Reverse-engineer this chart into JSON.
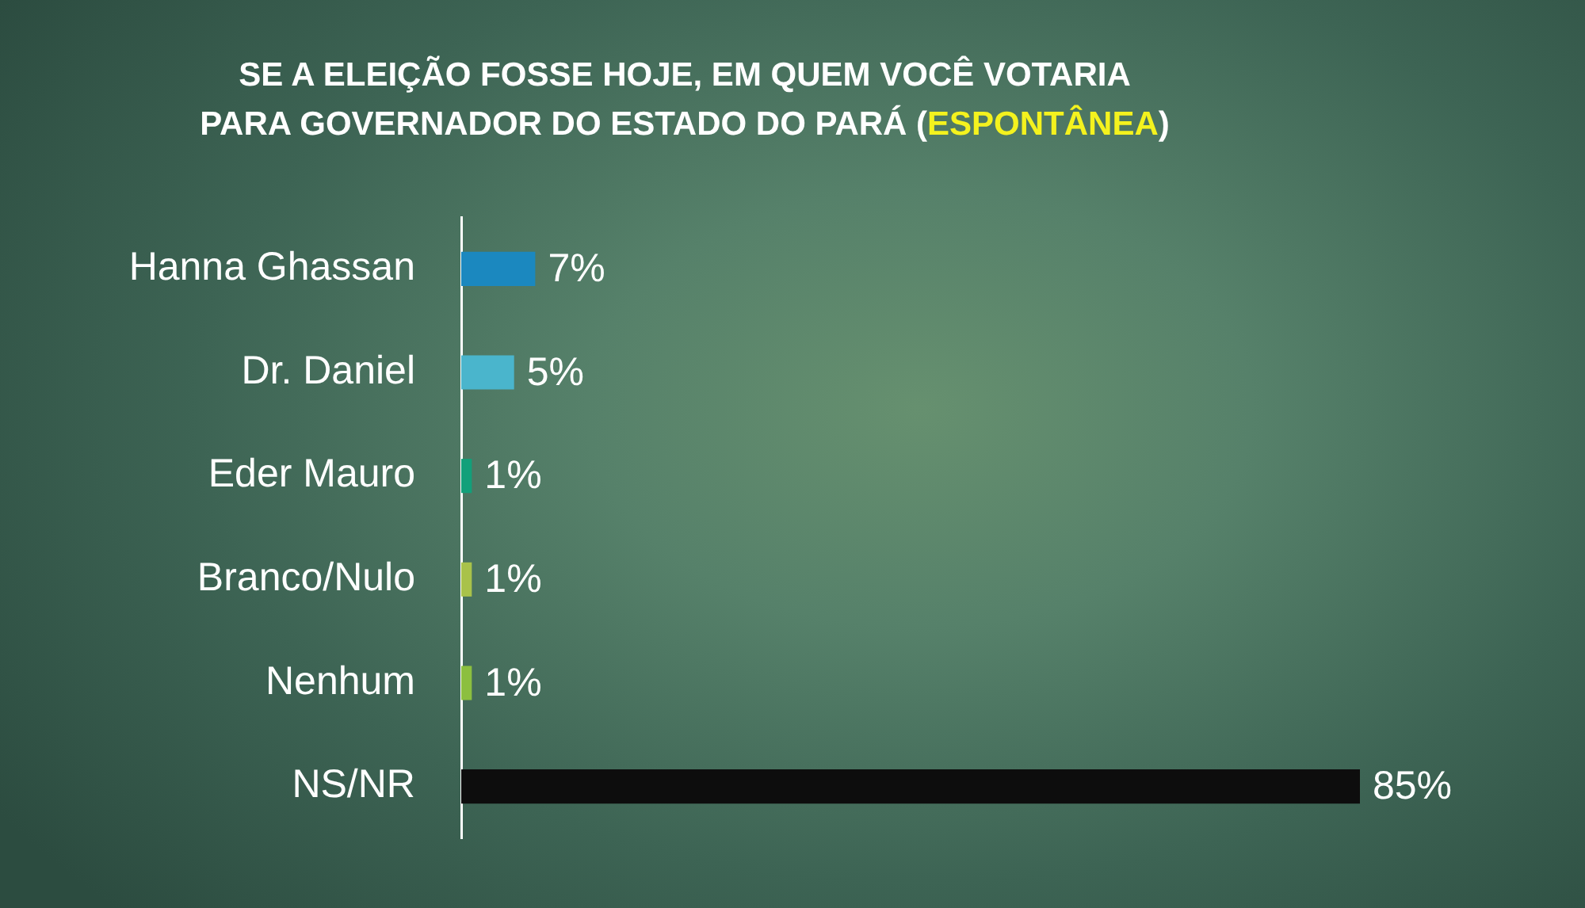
{
  "chart_data": {
    "type": "bar",
    "orientation": "horizontal",
    "title": "SE A ELEIÇÃO FOSSE HOJE, EM QUEM VOCÊ VOTARIA\nPARA GOVERNADOR DO ESTADO DO PARÁ (ESPONTÂNEA)",
    "categories": [
      "Hanna Ghassan",
      "Dr. Daniel",
      "Eder Mauro",
      "Branco/Nulo",
      "Nenhum",
      "NS/NR"
    ],
    "values": [
      7,
      5,
      1,
      1,
      1,
      85
    ],
    "colors": [
      "#1b88bf",
      "#4ab5cc",
      "#12a07a",
      "#a9c24a",
      "#8cbf3f",
      "#0d0d0d"
    ],
    "value_labels": [
      "7%",
      "5%",
      "1%",
      "1%",
      "1%",
      "85%"
    ]
  }
}
